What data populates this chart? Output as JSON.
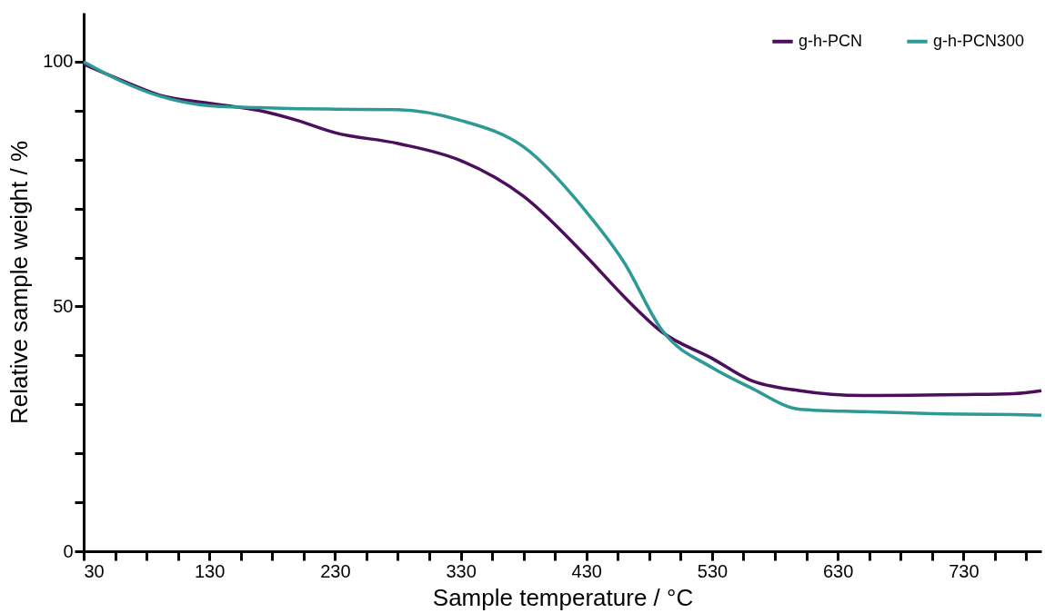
{
  "chart_data": {
    "type": "line",
    "xlabel": "Sample temperature / °C",
    "ylabel": "Relative sample weight / %",
    "xlim": [
      30,
      792
    ],
    "ylim": [
      0,
      110
    ],
    "xticks": [
      30,
      {
        "value": 55,
        "label": null
      },
      {
        "value": 80,
        "label": null
      },
      {
        "value": 105,
        "label": null
      },
      130,
      {
        "value": 155,
        "label": null
      },
      {
        "value": 180,
        "label": null
      },
      {
        "value": 205,
        "label": null
      },
      230,
      {
        "value": 255,
        "label": null
      },
      {
        "value": 280,
        "label": null
      },
      {
        "value": 305,
        "label": null
      },
      330,
      {
        "value": 355,
        "label": null
      },
      {
        "value": 380,
        "label": null
      },
      {
        "value": 405,
        "label": null
      },
      430,
      {
        "value": 455,
        "label": null
      },
      {
        "value": 480,
        "label": null
      },
      {
        "value": 505,
        "label": null
      },
      530,
      {
        "value": 555,
        "label": null
      },
      {
        "value": 580,
        "label": null
      },
      {
        "value": 605,
        "label": null
      },
      630,
      {
        "value": 655,
        "label": null
      },
      {
        "value": 680,
        "label": null
      },
      {
        "value": 705,
        "label": null
      },
      730,
      {
        "value": 755,
        "label": null
      },
      {
        "value": 780,
        "label": null
      }
    ],
    "yticks": [
      0,
      {
        "value": 10,
        "label": null
      },
      {
        "value": 20,
        "label": null
      },
      {
        "value": 30,
        "label": null
      },
      {
        "value": 40,
        "label": null
      },
      50,
      {
        "value": 60,
        "label": null
      },
      {
        "value": 70,
        "label": null
      },
      {
        "value": 80,
        "label": null
      },
      {
        "value": 90,
        "label": null
      },
      100
    ],
    "grid": false,
    "legend": "top right",
    "marker": "none",
    "line_style": "solid",
    "x": [
      30,
      60,
      90,
      130,
      170,
      200,
      230,
      280,
      330,
      380,
      430,
      460,
      490,
      530,
      560,
      600,
      650,
      730,
      770,
      792
    ],
    "series": [
      {
        "name": "g-h-PCN",
        "color": "#4b0f5c",
        "values": [
          99.5,
          96.2,
          93.2,
          91.5,
          90,
          88,
          85.5,
          83.3,
          79.8,
          72.5,
          60.2,
          52,
          44.8,
          39.4,
          35,
          32.8,
          31.8,
          32,
          32.2,
          32.8
        ]
      },
      {
        "name": "g-h-PCN300",
        "color": "#2e9a96",
        "values": [
          100,
          96,
          93,
          91,
          90.6,
          90.4,
          90.3,
          90.2,
          88,
          82.6,
          69.3,
          59,
          45.2,
          37.5,
          33.5,
          29,
          28.5,
          28,
          27.9,
          27.8
        ]
      }
    ]
  }
}
